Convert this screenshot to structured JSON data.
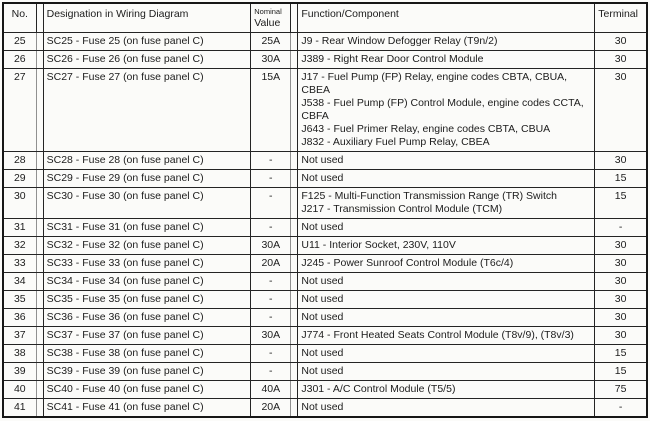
{
  "colors": {
    "border": "#161616",
    "background": "#fbfbf9",
    "text": "#1c1c1c"
  },
  "table": {
    "headers": {
      "no": "No.",
      "designation": "Designation in Wiring Diagram",
      "nominal_top": "Nominal",
      "nominal_bottom": "Value",
      "function": "Function/Component",
      "terminal": "Terminal"
    },
    "rows": [
      {
        "no": "25",
        "designation": "SC25 - Fuse 25 (on fuse panel C)",
        "value": "25A",
        "functions": [
          "J9 - Rear Window Defogger Relay (T9n/2)"
        ],
        "terminal": "30"
      },
      {
        "no": "26",
        "designation": "SC26 - Fuse 26 (on fuse panel C)",
        "value": "30A",
        "functions": [
          "J389 - Right Rear Door Control Module"
        ],
        "terminal": "30"
      },
      {
        "no": "27",
        "designation": "SC27 - Fuse 27 (on fuse panel C)",
        "value": "15A",
        "functions": [
          "J17 - Fuel Pump (FP) Relay, engine codes CBTA, CBUA, CBEA",
          "J538 - Fuel Pump (FP) Control Module, engine codes CCTA, CBFA",
          "J643 - Fuel Primer Relay, engine codes CBTA, CBUA",
          "J832 - Auxiliary Fuel Pump Relay, CBEA"
        ],
        "terminal": "30"
      },
      {
        "no": "28",
        "designation": "SC28 - Fuse 28 (on fuse panel C)",
        "value": "-",
        "functions": [
          "Not used"
        ],
        "terminal": "30"
      },
      {
        "no": "29",
        "designation": "SC29 - Fuse 29 (on fuse panel C)",
        "value": "-",
        "functions": [
          "Not used"
        ],
        "terminal": "15"
      },
      {
        "no": "30",
        "designation": "SC30 - Fuse 30 (on fuse panel C)",
        "value": "-",
        "functions": [
          "F125 - Multi-Function Transmission Range (TR) Switch",
          "J217 - Transmission Control Module (TCM)"
        ],
        "terminal": "15"
      },
      {
        "no": "31",
        "designation": "SC31 - Fuse 31 (on fuse panel C)",
        "value": "-",
        "functions": [
          "Not used"
        ],
        "terminal": "-"
      },
      {
        "no": "32",
        "designation": "SC32 - Fuse 32 (on fuse panel C)",
        "value": "30A",
        "functions": [
          "U11 - Interior Socket, 230V, 110V"
        ],
        "terminal": "30"
      },
      {
        "no": "33",
        "designation": "SC33 - Fuse 33 (on fuse panel C)",
        "value": "20A",
        "functions": [
          "J245 - Power Sunroof Control Module (T6c/4)"
        ],
        "terminal": "30"
      },
      {
        "no": "34",
        "designation": "SC34 - Fuse 34 (on fuse panel C)",
        "value": "-",
        "functions": [
          "Not used"
        ],
        "terminal": "30"
      },
      {
        "no": "35",
        "designation": "SC35 - Fuse 35 (on fuse panel C)",
        "value": "-",
        "functions": [
          "Not used"
        ],
        "terminal": "30"
      },
      {
        "no": "36",
        "designation": "SC36 - Fuse 36 (on fuse panel C)",
        "value": "-",
        "functions": [
          "Not used"
        ],
        "terminal": "30"
      },
      {
        "no": "37",
        "designation": "SC37 - Fuse 37 (on fuse panel C)",
        "value": "30A",
        "functions": [
          "J774 - Front Heated Seats Control Module (T8v/9), (T8v/3)"
        ],
        "terminal": "30"
      },
      {
        "no": "38",
        "designation": "SC38 - Fuse 38 (on fuse panel C)",
        "value": "-",
        "functions": [
          "Not used"
        ],
        "terminal": "15"
      },
      {
        "no": "39",
        "designation": "SC39 - Fuse 39 (on fuse panel C)",
        "value": "-",
        "functions": [
          "Not used"
        ],
        "terminal": "15"
      },
      {
        "no": "40",
        "designation": "SC40 - Fuse 40 (on fuse panel C)",
        "value": "40A",
        "functions": [
          "J301 - A/C Control Module (T5/5)"
        ],
        "terminal": "75"
      },
      {
        "no": "41",
        "designation": "SC41 - Fuse 41 (on fuse panel C)",
        "value": "20A",
        "functions": [
          "Not used"
        ],
        "terminal": "-"
      }
    ]
  }
}
